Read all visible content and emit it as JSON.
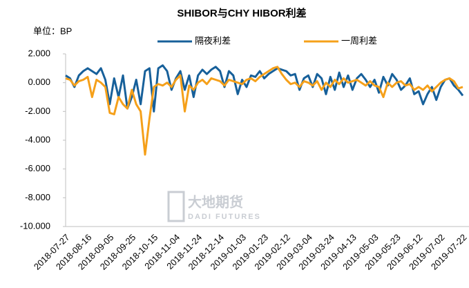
{
  "chart_data": {
    "type": "line",
    "title": "SHIBOR与CHY HIBOR利差",
    "unit": "单位：BP",
    "watermark": "大地期货",
    "watermark_sub": "DADI FUTURES",
    "categories": [
      "2018-07-27",
      null,
      null,
      null,
      null,
      "2018-08-16",
      null,
      null,
      null,
      null,
      "2018-09-05",
      null,
      null,
      null,
      null,
      "2018-09-25",
      null,
      null,
      null,
      null,
      "2018-10-15",
      null,
      null,
      null,
      null,
      "2018-11-04",
      null,
      null,
      null,
      null,
      "2018-11-24",
      null,
      null,
      null,
      null,
      "2018-12-14",
      null,
      null,
      null,
      null,
      "2019-01-03",
      null,
      null,
      null,
      null,
      "2019-01-23",
      null,
      null,
      null,
      null,
      "2019-02-12",
      null,
      null,
      null,
      null,
      "2019-03-04",
      null,
      null,
      null,
      null,
      "2019-03-24",
      null,
      null,
      null,
      null,
      "2019-04-13",
      null,
      null,
      null,
      null,
      "2019-05-03",
      null,
      null,
      null,
      null,
      "2019-05-23",
      null,
      null,
      null,
      null,
      "2019-06-12",
      null,
      null,
      null,
      null,
      "2019-07-02",
      null,
      null,
      null,
      null,
      "2019-07-22"
    ],
    "series": [
      {
        "name": "隔夜利差",
        "color": "#17609a",
        "values": [
          0.5,
          0.3,
          -0.3,
          0.5,
          0.8,
          1.0,
          0.8,
          0.6,
          1.0,
          0.2,
          -1.5,
          0.3,
          -1.0,
          0.5,
          -1.8,
          -1.0,
          0.2,
          -1.5,
          0.8,
          1.0,
          -2.0,
          1.0,
          1.2,
          0.8,
          -0.5,
          0.3,
          0.8,
          -0.5,
          0.5,
          -1.0,
          0.5,
          0.9,
          0.6,
          0.9,
          1.1,
          0.8,
          -0.3,
          0.8,
          0.5,
          -0.8,
          0.2,
          -0.3,
          0.5,
          0.4,
          0.8,
          0.3,
          0.6,
          0.8,
          1.0,
          0.9,
          0.8,
          0.5,
          0.6,
          -0.5,
          0.3,
          0.5,
          -0.3,
          0.6,
          0.3,
          -0.8,
          0.4,
          -0.5,
          0.7,
          -0.3,
          0.5,
          -0.5,
          0.3,
          0.6,
          0.2,
          -0.3,
          0.2,
          -0.7,
          0.4,
          -0.2,
          0.6,
          0.2,
          -0.5,
          -0.2,
          0.3,
          -0.8,
          -0.6,
          -1.5,
          -0.8,
          -0.3,
          -1.2,
          -0.3,
          0.2,
          0.3,
          -0.2,
          -0.5,
          -0.9
        ]
      },
      {
        "name": "一周利差",
        "color": "#f5a01a",
        "values": [
          0.3,
          0.2,
          -0.2,
          0.1,
          0.2,
          0.4,
          -1.0,
          0.2,
          0.0,
          -0.3,
          -2.1,
          -2.2,
          -1.0,
          -1.5,
          -1.8,
          -0.5,
          -1.5,
          -2.0,
          -5.0,
          -2.5,
          -0.3,
          -0.1,
          -0.2,
          0.0,
          -0.3,
          0.2,
          0.5,
          -2.0,
          -0.2,
          -0.5,
          0.0,
          0.2,
          -0.1,
          0.3,
          0.2,
          0.1,
          -0.2,
          0.2,
          0.1,
          0.0,
          -0.1,
          0.2,
          0.3,
          0.1,
          0.4,
          0.6,
          0.8,
          1.0,
          1.1,
          0.6,
          0.2,
          -0.1,
          0.0,
          -0.3,
          0.1,
          0.0,
          -0.2,
          0.1,
          -0.5,
          0.0,
          -0.3,
          0.2,
          -0.1,
          0.3,
          0.0,
          0.1,
          0.2,
          0.0,
          -0.2,
          0.1,
          -0.2,
          -0.3,
          -1.0,
          0.0,
          -0.3,
          0.0,
          0.1,
          -0.2,
          -0.1,
          -0.5,
          -0.3,
          -0.5,
          -0.2,
          -0.6,
          -0.3,
          0.0,
          0.2,
          0.3,
          0.1,
          -0.4,
          -0.3
        ]
      }
    ],
    "ylim": [
      -10,
      2
    ],
    "yticks": [
      {
        "value": -10,
        "label": "-10.000"
      },
      {
        "value": -8,
        "label": "-8.000"
      },
      {
        "value": -6,
        "label": "-6.000"
      },
      {
        "value": -4,
        "label": "-4.000"
      },
      {
        "value": -2,
        "label": "-2.000"
      },
      {
        "value": 0,
        "label": "0.000"
      },
      {
        "value": 2,
        "label": "2.000"
      }
    ],
    "grid": false,
    "legend": "top"
  }
}
